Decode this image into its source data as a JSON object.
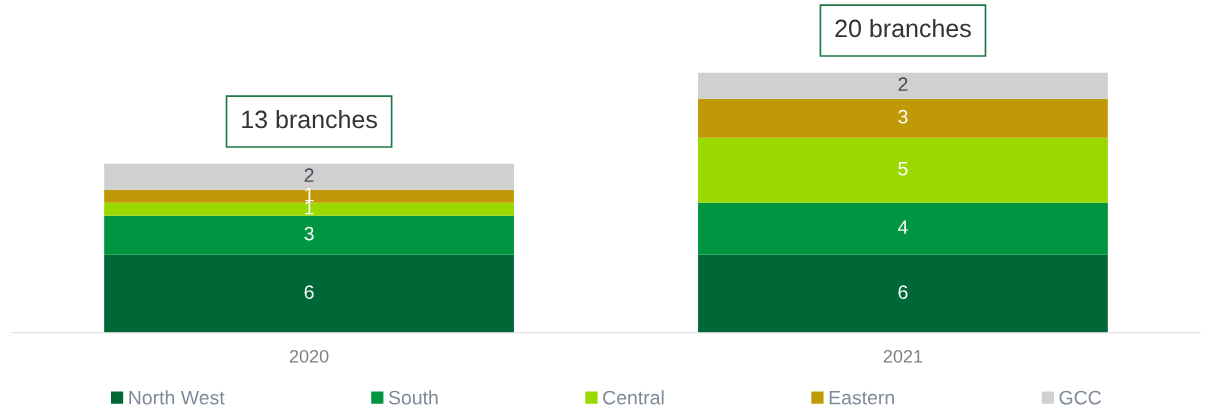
{
  "chart_data": {
    "type": "bar",
    "stacked": true,
    "relative": false,
    "categories": [
      "2020",
      "2021"
    ],
    "series": [
      {
        "name": "North West",
        "color": "#006837",
        "values": [
          6,
          6
        ]
      },
      {
        "name": "South",
        "color": "#009540",
        "values": [
          3,
          4
        ]
      },
      {
        "name": "Central",
        "color": "#99d900",
        "values": [
          1,
          5
        ]
      },
      {
        "name": "Eastern",
        "color": "#bf9a06",
        "values": [
          1,
          3
        ]
      },
      {
        "name": "GCC",
        "color": "#d0d0d0",
        "values": [
          2,
          2
        ]
      }
    ],
    "data_labels": true,
    "totals": [
      "13 branches",
      "20 branches"
    ],
    "legend": "bottom",
    "grid": false
  }
}
